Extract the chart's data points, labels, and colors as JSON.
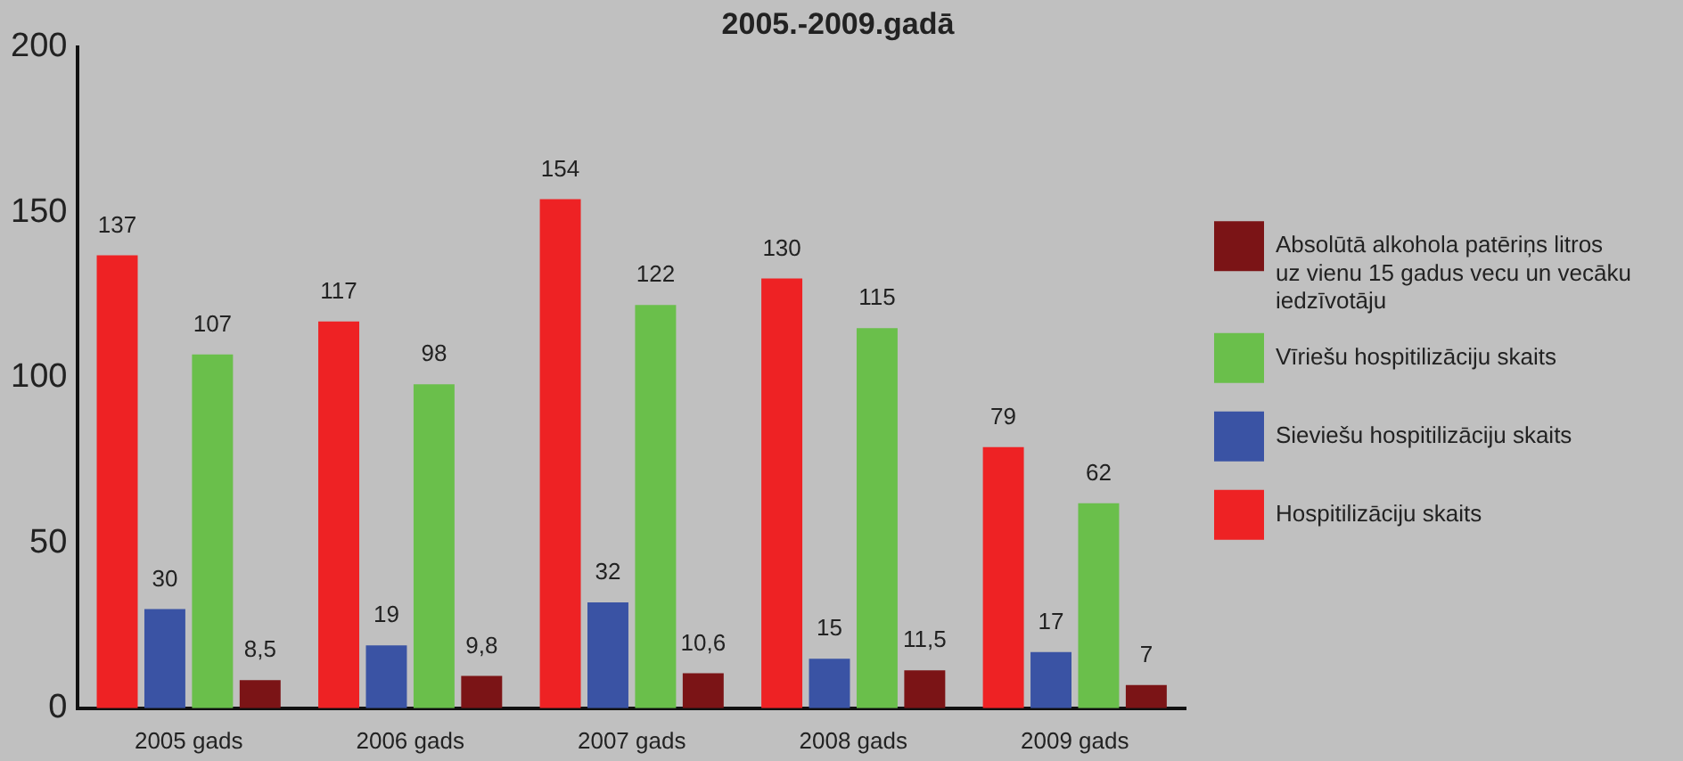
{
  "chart_data": {
    "type": "bar",
    "title": "2005.-2009.gadā",
    "categories": [
      "2005 gads",
      "2006 gads",
      "2007 gads",
      "2008 gads",
      "2009 gads"
    ],
    "series": [
      {
        "name": "Hospitilizāciju skaits",
        "color": "#ee2224",
        "values": [
          137,
          117,
          154,
          130,
          79
        ],
        "value_labels": [
          "137",
          "117",
          "154",
          "130",
          "79"
        ]
      },
      {
        "name": "Sieviešu hospitilizāciju skaits",
        "color": "#3a53a4",
        "values": [
          30,
          19,
          32,
          15,
          17
        ],
        "value_labels": [
          "30",
          "19",
          "32",
          "15",
          "17"
        ]
      },
      {
        "name": "Vīriešu hospitilizāciju skaits",
        "color": "#6abf4b",
        "values": [
          107,
          98,
          122,
          115,
          62
        ],
        "value_labels": [
          "107",
          "98",
          "122",
          "115",
          "62"
        ]
      },
      {
        "name": "Absolūtā alkohola patēriņs litros uz vienu 15 gadus vecu un vecāku iedzīvotāju",
        "color": "#7b1416",
        "values": [
          8.5,
          9.8,
          10.6,
          11.5,
          7
        ],
        "value_labels": [
          "8,5",
          "9,8",
          "10,6",
          "11,5",
          "7"
        ]
      }
    ],
    "ylim": [
      0,
      200
    ],
    "yticks": [
      0,
      50,
      100,
      150,
      200
    ],
    "grid": false,
    "legend": "right"
  }
}
